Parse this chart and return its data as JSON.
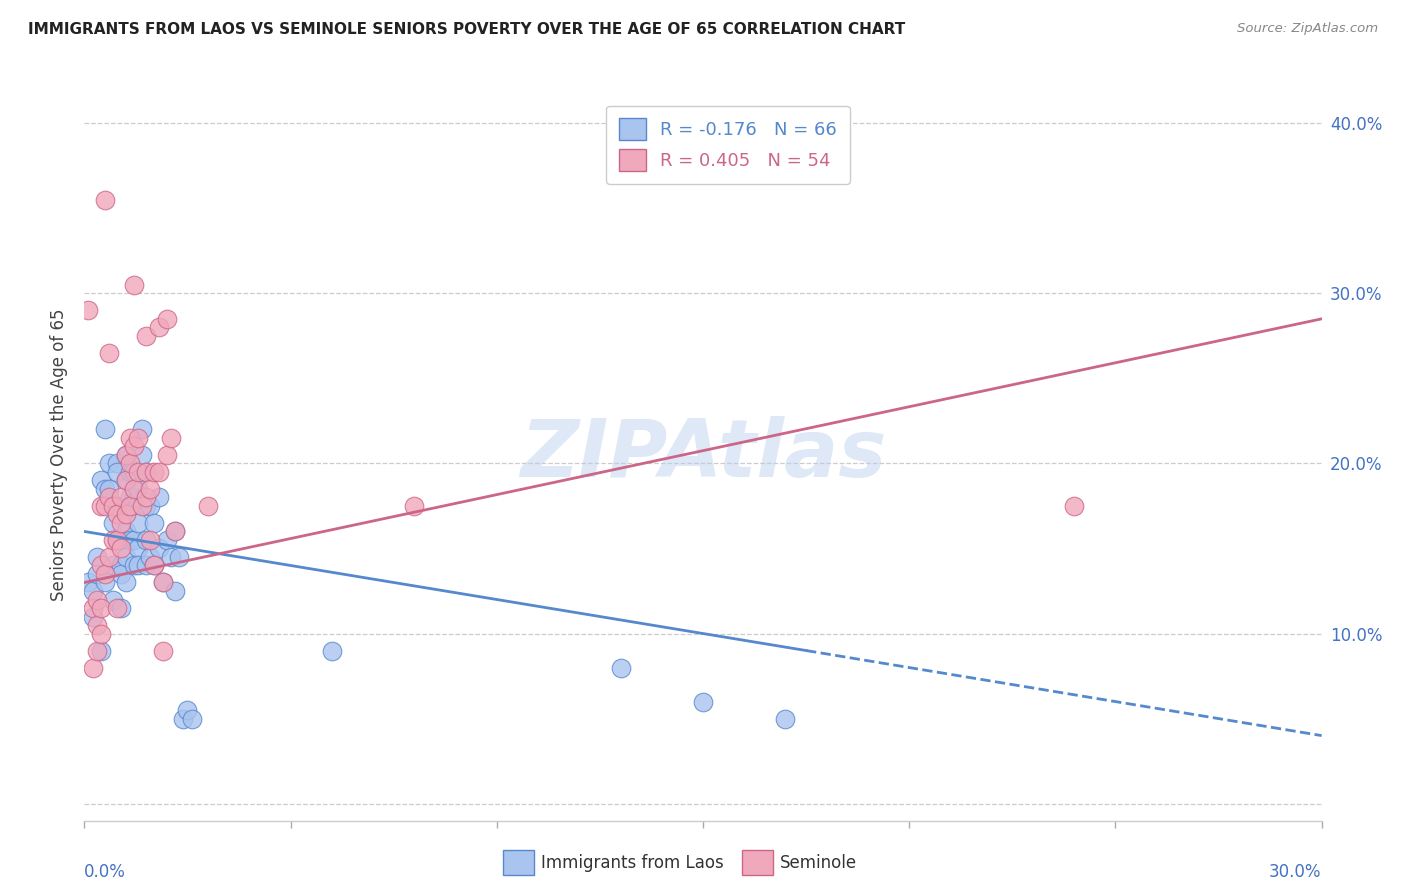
{
  "title": "IMMIGRANTS FROM LAOS VS SEMINOLE SENIORS POVERTY OVER THE AGE OF 65 CORRELATION CHART",
  "source": "Source: ZipAtlas.com",
  "ylabel": "Seniors Poverty Over the Age of 65",
  "yticks": [
    0.0,
    0.1,
    0.2,
    0.3,
    0.4
  ],
  "ytick_labels": [
    "",
    "10.0%",
    "20.0%",
    "30.0%",
    "40.0%"
  ],
  "xrange": [
    0.0,
    0.3
  ],
  "yrange": [
    -0.01,
    0.42
  ],
  "blue_R": -0.176,
  "blue_N": 66,
  "pink_R": 0.405,
  "pink_N": 54,
  "legend_label_blue": "Immigrants from Laos",
  "legend_label_pink": "Seminole",
  "blue_color": "#aac4f0",
  "blue_edge": "#5588cc",
  "pink_color": "#f0a8bc",
  "pink_edge": "#cc6688",
  "watermark": "ZIPAtlas",
  "blue_scatter": [
    [
      0.001,
      0.13
    ],
    [
      0.002,
      0.125
    ],
    [
      0.002,
      0.11
    ],
    [
      0.003,
      0.145
    ],
    [
      0.003,
      0.135
    ],
    [
      0.004,
      0.09
    ],
    [
      0.004,
      0.19
    ],
    [
      0.005,
      0.22
    ],
    [
      0.005,
      0.185
    ],
    [
      0.005,
      0.13
    ],
    [
      0.006,
      0.2
    ],
    [
      0.006,
      0.185
    ],
    [
      0.007,
      0.175
    ],
    [
      0.007,
      0.165
    ],
    [
      0.007,
      0.14
    ],
    [
      0.007,
      0.12
    ],
    [
      0.008,
      0.2
    ],
    [
      0.008,
      0.195
    ],
    [
      0.008,
      0.175
    ],
    [
      0.008,
      0.155
    ],
    [
      0.009,
      0.155
    ],
    [
      0.009,
      0.14
    ],
    [
      0.009,
      0.135
    ],
    [
      0.009,
      0.115
    ],
    [
      0.01,
      0.205
    ],
    [
      0.01,
      0.19
    ],
    [
      0.01,
      0.16
    ],
    [
      0.01,
      0.145
    ],
    [
      0.01,
      0.13
    ],
    [
      0.011,
      0.195
    ],
    [
      0.011,
      0.18
    ],
    [
      0.011,
      0.175
    ],
    [
      0.011,
      0.155
    ],
    [
      0.012,
      0.195
    ],
    [
      0.012,
      0.18
    ],
    [
      0.012,
      0.155
    ],
    [
      0.012,
      0.14
    ],
    [
      0.013,
      0.185
    ],
    [
      0.013,
      0.165
    ],
    [
      0.013,
      0.15
    ],
    [
      0.013,
      0.14
    ],
    [
      0.014,
      0.22
    ],
    [
      0.014,
      0.205
    ],
    [
      0.015,
      0.195
    ],
    [
      0.015,
      0.175
    ],
    [
      0.015,
      0.155
    ],
    [
      0.015,
      0.14
    ],
    [
      0.016,
      0.175
    ],
    [
      0.016,
      0.145
    ],
    [
      0.017,
      0.165
    ],
    [
      0.017,
      0.14
    ],
    [
      0.018,
      0.18
    ],
    [
      0.018,
      0.15
    ],
    [
      0.019,
      0.13
    ],
    [
      0.02,
      0.155
    ],
    [
      0.021,
      0.145
    ],
    [
      0.022,
      0.16
    ],
    [
      0.022,
      0.125
    ],
    [
      0.023,
      0.145
    ],
    [
      0.024,
      0.05
    ],
    [
      0.025,
      0.055
    ],
    [
      0.026,
      0.05
    ],
    [
      0.06,
      0.09
    ],
    [
      0.13,
      0.08
    ],
    [
      0.15,
      0.06
    ],
    [
      0.17,
      0.05
    ]
  ],
  "pink_scatter": [
    [
      0.001,
      0.29
    ],
    [
      0.002,
      0.08
    ],
    [
      0.002,
      0.115
    ],
    [
      0.003,
      0.09
    ],
    [
      0.003,
      0.105
    ],
    [
      0.003,
      0.12
    ],
    [
      0.004,
      0.1
    ],
    [
      0.004,
      0.115
    ],
    [
      0.004,
      0.14
    ],
    [
      0.004,
      0.175
    ],
    [
      0.005,
      0.355
    ],
    [
      0.005,
      0.135
    ],
    [
      0.005,
      0.175
    ],
    [
      0.006,
      0.145
    ],
    [
      0.006,
      0.265
    ],
    [
      0.006,
      0.18
    ],
    [
      0.007,
      0.155
    ],
    [
      0.007,
      0.175
    ],
    [
      0.008,
      0.155
    ],
    [
      0.008,
      0.17
    ],
    [
      0.008,
      0.115
    ],
    [
      0.009,
      0.165
    ],
    [
      0.009,
      0.18
    ],
    [
      0.009,
      0.15
    ],
    [
      0.01,
      0.17
    ],
    [
      0.01,
      0.19
    ],
    [
      0.01,
      0.205
    ],
    [
      0.011,
      0.175
    ],
    [
      0.011,
      0.2
    ],
    [
      0.011,
      0.215
    ],
    [
      0.012,
      0.185
    ],
    [
      0.012,
      0.21
    ],
    [
      0.012,
      0.305
    ],
    [
      0.013,
      0.195
    ],
    [
      0.013,
      0.215
    ],
    [
      0.014,
      0.175
    ],
    [
      0.015,
      0.195
    ],
    [
      0.015,
      0.18
    ],
    [
      0.015,
      0.275
    ],
    [
      0.016,
      0.185
    ],
    [
      0.016,
      0.155
    ],
    [
      0.017,
      0.195
    ],
    [
      0.017,
      0.14
    ],
    [
      0.018,
      0.195
    ],
    [
      0.018,
      0.28
    ],
    [
      0.019,
      0.09
    ],
    [
      0.019,
      0.13
    ],
    [
      0.02,
      0.205
    ],
    [
      0.02,
      0.285
    ],
    [
      0.021,
      0.215
    ],
    [
      0.022,
      0.16
    ],
    [
      0.03,
      0.175
    ],
    [
      0.08,
      0.175
    ],
    [
      0.24,
      0.175
    ]
  ],
  "blue_line_solid": {
    "x0": 0.0,
    "y0": 0.16,
    "x1": 0.175,
    "y1": 0.09
  },
  "blue_line_dashed": {
    "x0": 0.175,
    "y0": 0.09,
    "x1": 0.3,
    "y1": 0.04
  },
  "pink_line": {
    "x0": 0.0,
    "y0": 0.13,
    "x1": 0.3,
    "y1": 0.285
  }
}
